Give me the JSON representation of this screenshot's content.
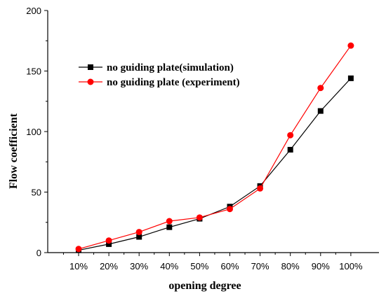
{
  "chart_data": {
    "type": "line",
    "title": "",
    "xlabel": "opening degree",
    "ylabel": "Flow coefficient",
    "categories": [
      "10%",
      "20%",
      "30%",
      "40%",
      "50%",
      "60%",
      "70%",
      "80%",
      "90%",
      "100%"
    ],
    "ylim": [
      0,
      200
    ],
    "yticks": [
      0,
      50,
      100,
      150,
      200
    ],
    "grid": false,
    "legend_position": "upper-left",
    "series": [
      {
        "name": "no guiding plate(simulation)",
        "color": "#000000",
        "marker": "square",
        "values": [
          2,
          7,
          13,
          21,
          28,
          38,
          55,
          85,
          117,
          144
        ]
      },
      {
        "name": "no guiding plate (experiment)",
        "color": "#ff0000",
        "marker": "circle",
        "values": [
          3,
          10,
          17,
          26,
          29,
          36,
          53,
          97,
          136,
          171
        ]
      }
    ]
  }
}
